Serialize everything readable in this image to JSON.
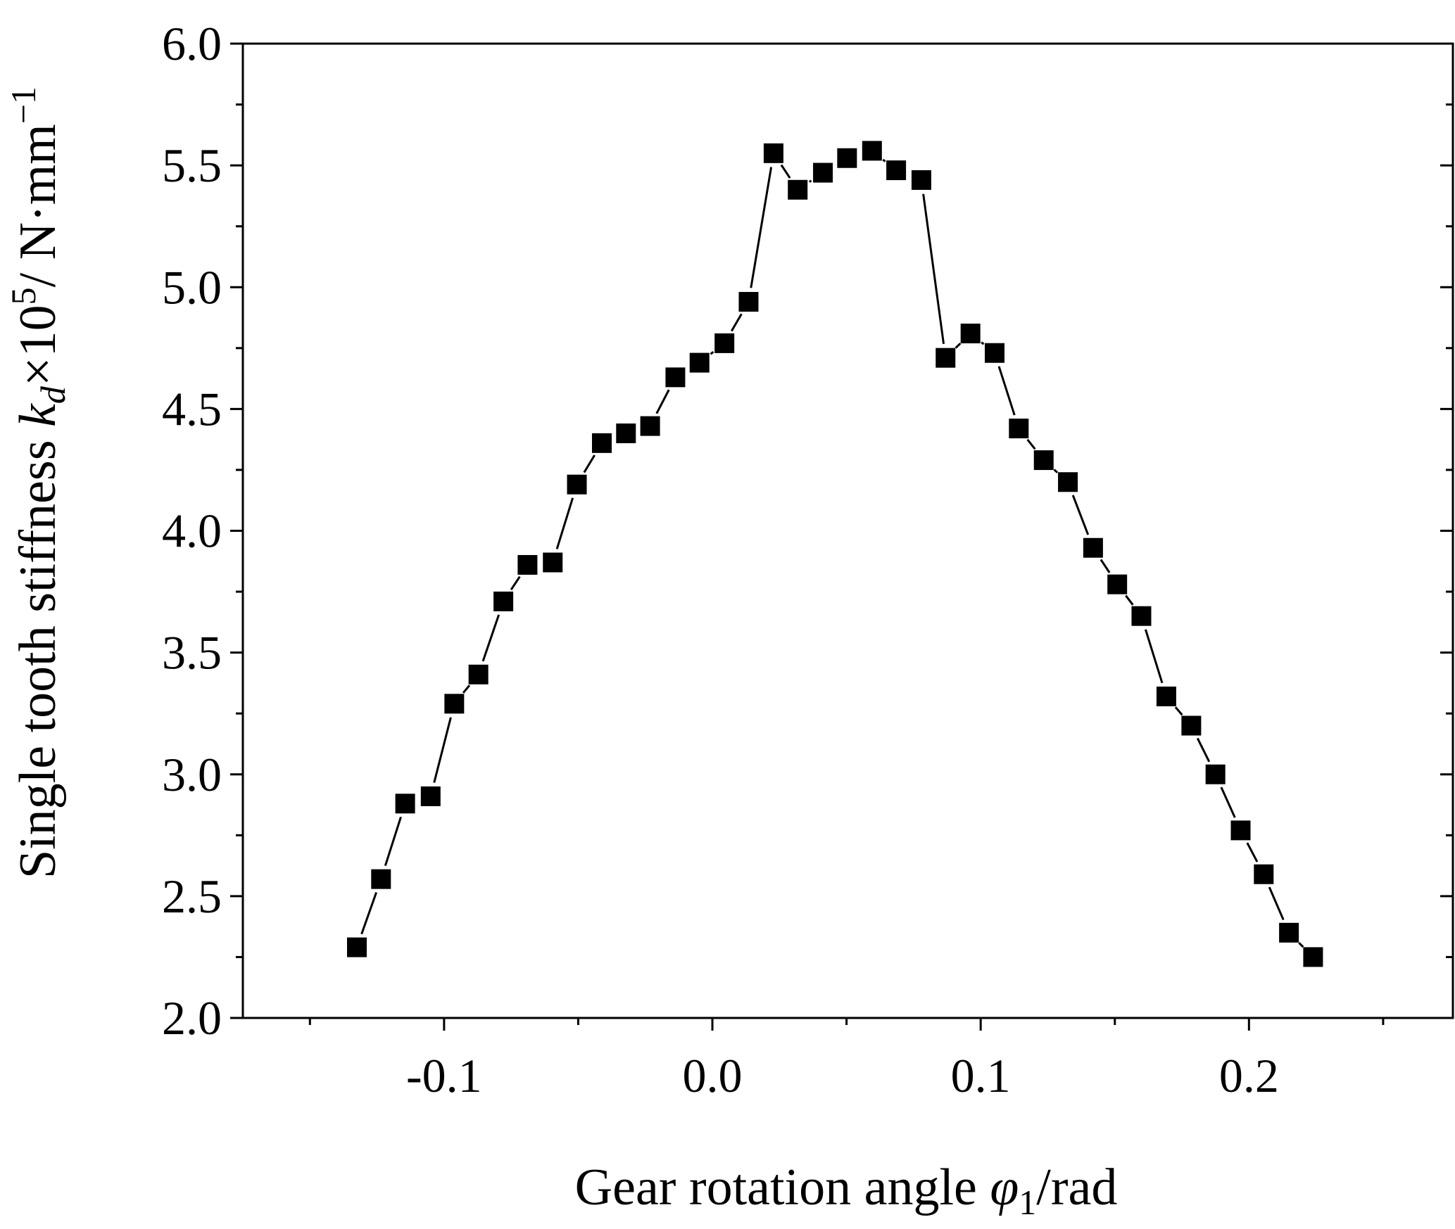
{
  "chart_data": {
    "type": "line",
    "title": "",
    "xlabel_parts": {
      "pre": "Gear rotation angle ",
      "sym": "φ",
      "sub": "1",
      "post": "/rad"
    },
    "ylabel_parts": {
      "pre": "Single tooth stiffness ",
      "sym": "k",
      "sub": "d",
      "mid": "×10",
      "sup": "5",
      "post": "/ N·mm",
      "sup2": "−1"
    },
    "xlim": [
      -0.175,
      0.276
    ],
    "ylim": [
      2.0,
      6.0
    ],
    "xticks": [
      -0.1,
      0.0,
      0.1,
      0.2
    ],
    "xtick_labels": [
      "-0.1",
      "0.0",
      "0.1",
      "0.2"
    ],
    "yticks": [
      2.0,
      2.5,
      3.0,
      3.5,
      4.0,
      4.5,
      5.0,
      5.5,
      6.0
    ],
    "ytick_labels": [
      "2.0",
      "2.5",
      "3.0",
      "3.5",
      "4.0",
      "4.5",
      "5.0",
      "5.5",
      "6.0"
    ],
    "grid": false,
    "marker": "square",
    "color": "#000000",
    "x": [
      -0.1325,
      -0.1235,
      -0.1145,
      -0.105,
      -0.0962,
      -0.0872,
      -0.0779,
      -0.0689,
      -0.0595,
      -0.0505,
      -0.0412,
      -0.0322,
      -0.0232,
      -0.0138,
      -0.0048,
      0.0045,
      0.0135,
      0.0228,
      0.0318,
      0.0412,
      0.0502,
      0.0595,
      0.0685,
      0.0779,
      0.0869,
      0.0962,
      0.1052,
      0.1142,
      0.1235,
      0.1325,
      0.1419,
      0.1509,
      0.1599,
      0.1692,
      0.1785,
      0.1875,
      0.1969,
      0.2055,
      0.2149,
      0.2239
    ],
    "y": [
      2.29,
      2.57,
      2.88,
      2.91,
      3.29,
      3.41,
      3.71,
      3.86,
      3.87,
      4.19,
      4.36,
      4.4,
      4.43,
      4.63,
      4.69,
      4.77,
      4.94,
      5.55,
      5.4,
      5.47,
      5.53,
      5.56,
      5.48,
      5.44,
      4.71,
      4.81,
      4.73,
      4.42,
      4.29,
      4.2,
      3.93,
      3.78,
      3.65,
      3.32,
      3.2,
      3.0,
      2.77,
      2.59,
      2.35,
      2.25
    ]
  }
}
